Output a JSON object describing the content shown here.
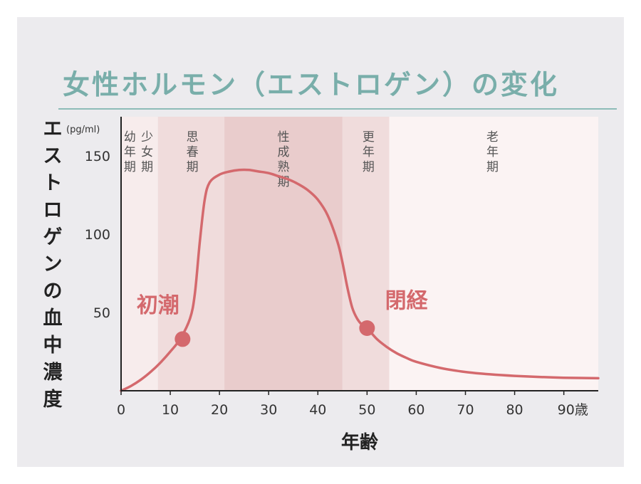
{
  "title": "女性ホルモン（エストロゲン）の変化",
  "colors": {
    "title": "#79aeaa",
    "title_rule": "#8dbcb8",
    "curve": "#d4696d",
    "annotation": "#d4696d",
    "marker": "#d4696d",
    "axis": "#222222",
    "text": "#333333",
    "stage_text": "#555555",
    "bands": [
      "#f7ecec",
      "#f0dcdc",
      "#e9cccc",
      "#f0dcdc",
      "#fbf3f3"
    ]
  },
  "chart_data": {
    "type": "line",
    "ylabel": "エストロゲンの血中濃度",
    "yunit": "(pg/ml)",
    "xlabel": "年齢",
    "xlim": [
      0,
      97
    ],
    "ylim": [
      0,
      175
    ],
    "x_ticks": [
      0,
      10,
      20,
      30,
      40,
      50,
      60,
      70,
      80,
      90
    ],
    "x_tick_labels": [
      "0",
      "10",
      "20",
      "30",
      "40",
      "50",
      "60",
      "70",
      "80",
      "90歳"
    ],
    "y_ticks": [
      50,
      100,
      150
    ],
    "y_tick_labels": [
      "50",
      "100",
      "150"
    ],
    "grid": false,
    "legend": "none",
    "series": [
      {
        "x": [
          0,
          2,
          4,
          6,
          8,
          10,
          12,
          14,
          15,
          16,
          17,
          18,
          20,
          22,
          24,
          26,
          28,
          30,
          32,
          34,
          36,
          38,
          40,
          42,
          44,
          45,
          46,
          47,
          48,
          49,
          50,
          52,
          54,
          56,
          58,
          60,
          65,
          70,
          75,
          80,
          85,
          90,
          97
        ],
        "y": [
          0,
          3,
          7,
          12,
          18,
          25,
          33,
          46,
          62,
          95,
          122,
          133,
          138,
          140,
          141,
          141,
          140,
          139,
          137,
          135,
          132,
          128,
          122,
          112,
          95,
          82,
          66,
          53,
          46,
          42,
          40,
          33,
          28,
          24,
          21,
          18.5,
          14.5,
          12,
          10.5,
          9.5,
          8.8,
          8.3,
          8
        ]
      }
    ],
    "stages": [
      {
        "label_lines": [
          "幼",
          "年",
          "期"
        ],
        "x_start": 0,
        "x_end": 7.5,
        "label_x": 1.8,
        "band": 0
      },
      {
        "label_lines": [
          "少",
          "女",
          "期"
        ],
        "x_start": 0,
        "x_end": 7.5,
        "label_x": 5.3,
        "band": 0
      },
      {
        "label_lines": [
          "思",
          "春",
          "期"
        ],
        "x_start": 7.5,
        "x_end": 21,
        "label_x": 14.5,
        "band": 1
      },
      {
        "label_lines": [
          "性",
          "成",
          "熟",
          "期"
        ],
        "x_start": 21,
        "x_end": 45,
        "label_x": 33,
        "band": 2
      },
      {
        "label_lines": [
          "更",
          "年",
          "期"
        ],
        "x_start": 45,
        "x_end": 54.5,
        "label_x": 50.3,
        "band": 3
      },
      {
        "label_lines": [
          "老",
          "年",
          "期"
        ],
        "x_start": 54.5,
        "x_end": 97,
        "label_x": 75.5,
        "band": 4
      }
    ],
    "annotations": [
      {
        "label": "初潮",
        "x": 12.5,
        "y": 33,
        "label_x": 7.5,
        "label_y": 50
      },
      {
        "label": "閉経",
        "x": 50,
        "y": 40,
        "label_x": 58,
        "label_y": 53
      }
    ]
  }
}
